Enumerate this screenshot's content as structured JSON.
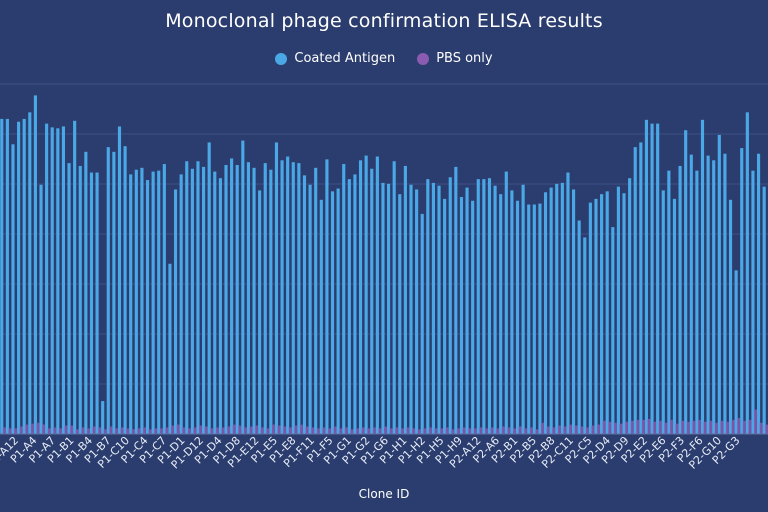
{
  "chart_data": {
    "type": "bar",
    "title": "Monoclonal phage confirmation ELISA results",
    "xlabel": "Clone ID",
    "ylabel": "",
    "ylim": [
      0,
      3.7
    ],
    "grid": true,
    "legend_position": "top-center",
    "tick_labels": [
      "P1-A12",
      "P1-A4",
      "P1-A7",
      "P1-B1",
      "P1-B4",
      "P1-B7",
      "P1-C10",
      "P1-C4",
      "P1-C7",
      "P1-D1",
      "P1-D12",
      "P1-D4",
      "P1-D8",
      "P1-E12",
      "P1-E5",
      "P1-E8",
      "P1-F11",
      "P1-F5",
      "P1-G1",
      "P1-G2",
      "P1-G6",
      "P1-H1",
      "P1-H2",
      "P1-H5",
      "P1-H9",
      "P2-A12",
      "P2-A6",
      "P2-B1",
      "P2-B5",
      "P2-B8",
      "P2-C11",
      "P2-C5",
      "P2-D4",
      "P2-D9",
      "P2-E2",
      "P2-E6",
      "P2-F3",
      "P2-F6",
      "P2-G10",
      "P2-G3"
    ],
    "series": [
      {
        "name": "Coated Antigen",
        "color": "#4aa8e6",
        "values": [
          3.35,
          3.35,
          3.08,
          3.32,
          3.35,
          3.42,
          3.6,
          2.65,
          3.3,
          3.26,
          3.25,
          3.27,
          2.88,
          3.33,
          2.85,
          3.0,
          2.78,
          2.78,
          0.35,
          3.05,
          3.0,
          3.27,
          3.06,
          2.76,
          2.81,
          2.83,
          2.7,
          2.79,
          2.8,
          2.87,
          1.81,
          2.6,
          2.76,
          2.9,
          2.82,
          2.9,
          2.84,
          3.1,
          2.79,
          2.72,
          2.86,
          2.93,
          2.86,
          3.12,
          2.89,
          2.83,
          2.59,
          2.88,
          2.81,
          3.1,
          2.91,
          2.95,
          2.89,
          2.88,
          2.75,
          2.65,
          2.83,
          2.49,
          2.92,
          2.58,
          2.61,
          2.87,
          2.71,
          2.76,
          2.91,
          2.96,
          2.82,
          2.95,
          2.67,
          2.66,
          2.9,
          2.55,
          2.85,
          2.65,
          2.6,
          2.34,
          2.71,
          2.67,
          2.64,
          2.5,
          2.73,
          2.84,
          2.52,
          2.62,
          2.48,
          2.71,
          2.71,
          2.72,
          2.64,
          2.55,
          2.79,
          2.59,
          2.48,
          2.65,
          2.44,
          2.44,
          2.45,
          2.57,
          2.62,
          2.66,
          2.67,
          2.78,
          2.6,
          2.27,
          2.09,
          2.46,
          2.5,
          2.55,
          2.58,
          2.2,
          2.63,
          2.56,
          2.72,
          3.05,
          3.1,
          3.34,
          3.3,
          3.3,
          2.59,
          2.8,
          2.5,
          2.85,
          3.23,
          2.97,
          2.8,
          3.34,
          2.96,
          2.91,
          3.18,
          2.98,
          2.49,
          1.74,
          3.04,
          3.42,
          2.8,
          2.98,
          2.63
        ],
        "pbs_note": ""
      },
      {
        "name": "PBS only",
        "color": "#8a5bb0",
        "values": [
          0.07,
          0.06,
          0.06,
          0.08,
          0.1,
          0.11,
          0.12,
          0.1,
          0.06,
          0.07,
          0.06,
          0.09,
          0.09,
          0.05,
          0.07,
          0.06,
          0.08,
          0.07,
          0.05,
          0.08,
          0.06,
          0.07,
          0.06,
          0.05,
          0.06,
          0.07,
          0.05,
          0.06,
          0.06,
          0.07,
          0.09,
          0.1,
          0.07,
          0.06,
          0.07,
          0.09,
          0.08,
          0.06,
          0.07,
          0.07,
          0.08,
          0.1,
          0.09,
          0.07,
          0.08,
          0.09,
          0.07,
          0.06,
          0.1,
          0.09,
          0.08,
          0.07,
          0.09,
          0.1,
          0.08,
          0.07,
          0.06,
          0.07,
          0.06,
          0.08,
          0.06,
          0.07,
          0.05,
          0.06,
          0.07,
          0.06,
          0.07,
          0.06,
          0.08,
          0.06,
          0.07,
          0.06,
          0.07,
          0.06,
          0.05,
          0.06,
          0.07,
          0.06,
          0.06,
          0.07,
          0.05,
          0.06,
          0.07,
          0.06,
          0.06,
          0.07,
          0.06,
          0.07,
          0.06,
          0.08,
          0.07,
          0.06,
          0.08,
          0.06,
          0.07,
          0.05,
          0.12,
          0.08,
          0.07,
          0.09,
          0.08,
          0.1,
          0.09,
          0.08,
          0.07,
          0.09,
          0.1,
          0.14,
          0.13,
          0.12,
          0.11,
          0.13,
          0.14,
          0.15,
          0.15,
          0.16,
          0.13,
          0.14,
          0.12,
          0.15,
          0.11,
          0.14,
          0.13,
          0.14,
          0.15,
          0.13,
          0.14,
          0.12,
          0.14,
          0.13,
          0.15,
          0.17,
          0.14,
          0.15,
          0.26,
          0.12,
          0.1
        ]
      }
    ]
  }
}
